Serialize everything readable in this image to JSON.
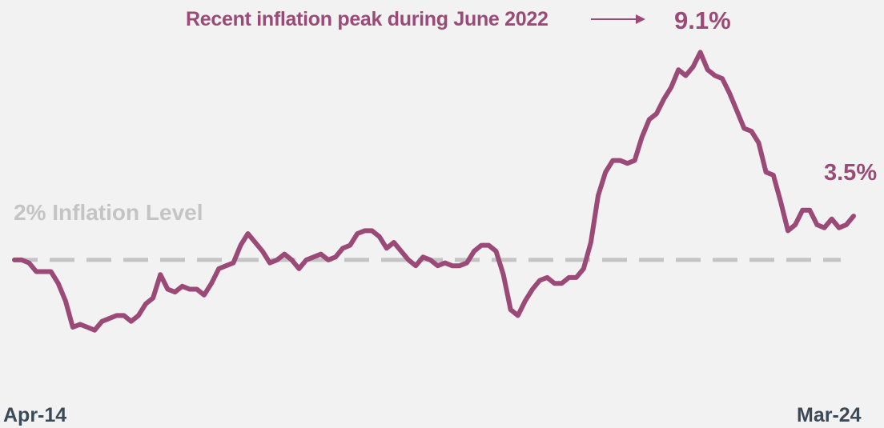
{
  "chart_data": {
    "type": "line",
    "x_start": "Apr-14",
    "x_end": "Mar-24",
    "ylim": [
      -0.6,
      9.6
    ],
    "grid": false,
    "colors": {
      "series": "#9b4a77",
      "reference": "#c4c4c4",
      "axis_text": "#3c4a58"
    },
    "series": [
      {
        "values": [
          2.0,
          2.0,
          1.9,
          1.6,
          1.6,
          1.6,
          1.2,
          0.6,
          -0.3,
          -0.2,
          -0.3,
          -0.4,
          -0.1,
          0.0,
          0.1,
          0.1,
          -0.1,
          0.1,
          0.5,
          0.7,
          1.5,
          1.0,
          0.9,
          1.1,
          1.0,
          1.0,
          0.8,
          1.2,
          1.7,
          1.8,
          1.9,
          2.5,
          2.9,
          2.6,
          2.3,
          1.9,
          2.0,
          2.2,
          2.0,
          1.7,
          2.0,
          2.1,
          2.2,
          2.0,
          2.1,
          2.4,
          2.5,
          2.9,
          3.0,
          3.0,
          2.8,
          2.4,
          2.6,
          2.3,
          2.0,
          1.8,
          2.1,
          2.0,
          1.8,
          1.9,
          1.8,
          1.8,
          1.9,
          2.3,
          2.5,
          2.5,
          2.3,
          1.5,
          0.3,
          0.1,
          0.6,
          1.0,
          1.3,
          1.4,
          1.2,
          1.2,
          1.4,
          1.4,
          1.7,
          2.6,
          4.2,
          5.0,
          5.4,
          5.4,
          5.3,
          5.4,
          6.2,
          6.8,
          7.0,
          7.5,
          7.9,
          8.5,
          8.3,
          8.6,
          9.1,
          8.5,
          8.3,
          8.2,
          7.7,
          7.1,
          6.5,
          6.4,
          6.0,
          5.0,
          4.9,
          4.0,
          3.0,
          3.2,
          3.7,
          3.7,
          3.2,
          3.1,
          3.4,
          3.1,
          3.2,
          3.5
        ],
        "reference_value": 2.0
      }
    ],
    "annotations": {
      "peak_note": "Recent inflation peak during June 2022",
      "peak_value": "9.1%",
      "last_value": "3.5%",
      "reference_label": "2% Inflation Level"
    },
    "x_tick_labels": {
      "first": "Apr-14",
      "last": "Mar-24"
    }
  }
}
